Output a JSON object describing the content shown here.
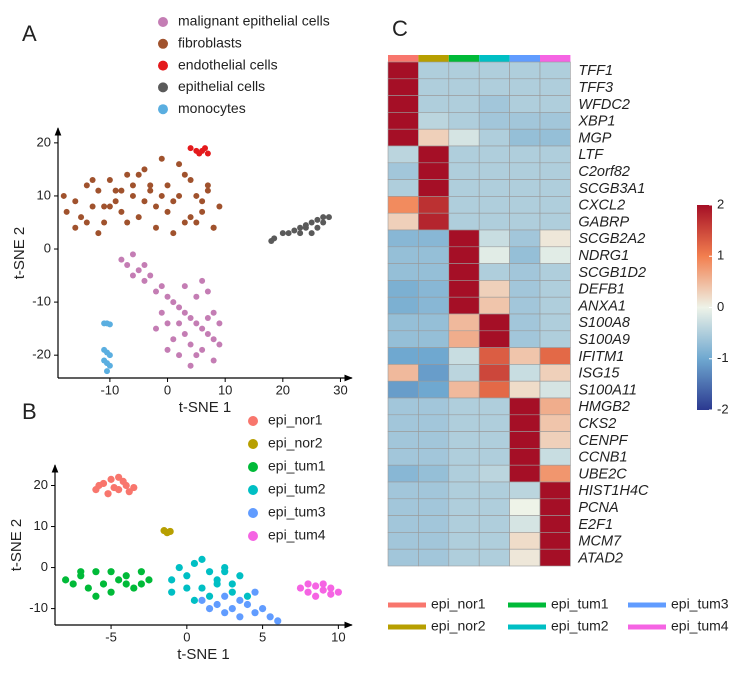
{
  "chart_data": [
    {
      "type": "scatter",
      "panel": "A",
      "xlabel": "t-SNE 1",
      "ylabel": "t-SNE 2",
      "xlim": [
        -19,
        32
      ],
      "ylim": [
        -24.3,
        22.8
      ],
      "xticks": [
        -10,
        0,
        10,
        20,
        30
      ],
      "yticks": [
        -20,
        -10,
        0,
        10,
        20
      ],
      "series": [
        {
          "name": "malignant epithelial cells",
          "color": "#c47db4",
          "x": [
            -8,
            -7,
            -6,
            -5,
            -4,
            -3,
            -2,
            -1,
            0,
            1,
            2,
            3,
            4,
            5,
            6,
            7,
            8,
            9,
            2,
            3,
            4,
            5,
            6,
            7,
            8,
            7,
            6,
            1,
            0,
            -1,
            -2,
            0,
            2,
            4,
            8,
            9,
            5,
            3,
            -6,
            -4
          ],
          "y": [
            -2,
            -3,
            -1,
            -4,
            -6,
            -5,
            -8,
            -7,
            -9,
            -10,
            -11,
            -12,
            -13,
            -14,
            -15,
            -16,
            -17,
            -18,
            -14,
            -16,
            -18,
            -20,
            -19,
            -13,
            -12,
            -8,
            -6,
            -17,
            -14,
            -12,
            -15,
            -19,
            -20,
            -22,
            -21,
            -14,
            -9,
            -7,
            -5,
            -3
          ]
        },
        {
          "name": "fibroblasts",
          "color": "#a0522d",
          "x": [
            -18,
            -17.5,
            -16,
            -15,
            -14,
            -13,
            -12,
            -11,
            -10,
            -9,
            -8,
            -7,
            -6,
            -5,
            -4,
            -3,
            -2,
            -1,
            0,
            1,
            2,
            3,
            4,
            5,
            6,
            7,
            8,
            9,
            -16,
            -14,
            -12,
            -10,
            -8,
            -6,
            -4,
            -2,
            0,
            2,
            4,
            6,
            8,
            -13,
            -9,
            -5,
            -1,
            3,
            7,
            -11,
            -7,
            -3,
            1,
            5
          ],
          "y": [
            10,
            7,
            9,
            6,
            12,
            8,
            11,
            5,
            13,
            9,
            7,
            14,
            10,
            6,
            15,
            11,
            8,
            17,
            12,
            9,
            16,
            5,
            13,
            10,
            7,
            11,
            4,
            8,
            4,
            5,
            3,
            8,
            11,
            12,
            9,
            4,
            7,
            10,
            6,
            9,
            4,
            13,
            11,
            14,
            10,
            14,
            12,
            8,
            5,
            12,
            3,
            5
          ]
        },
        {
          "name": "endothelial cells",
          "color": "#e41a1c",
          "x": [
            4,
            5,
            6,
            7,
            5.5,
            6.5
          ],
          "y": [
            19,
            18.5,
            18.5,
            18,
            18,
            19
          ]
        },
        {
          "name": "epithelial cells",
          "color": "#5a5a5a",
          "x": [
            18,
            18.5,
            20,
            21,
            22,
            23,
            24,
            25,
            26,
            27,
            28,
            25,
            26,
            27,
            24,
            23
          ],
          "y": [
            1.5,
            2,
            3,
            3,
            3.5,
            4,
            4.5,
            5,
            5.5,
            6,
            6,
            3,
            4,
            5,
            4,
            3
          ]
        },
        {
          "name": "monocytes",
          "color": "#5aaee0",
          "x": [
            -11,
            -10.5,
            -10,
            -11,
            -10.5,
            -10,
            -11,
            -10.5,
            -10,
            -10.5
          ],
          "y": [
            -14,
            -14,
            -14.2,
            -19,
            -19.5,
            -20,
            -21,
            -21.5,
            -22,
            -23
          ]
        }
      ]
    },
    {
      "type": "scatter",
      "panel": "B",
      "xlabel": "t-SNE 1",
      "ylabel": "t-SNE 2",
      "xlim": [
        -8.7,
        10.9
      ],
      "ylim": [
        -14,
        25
      ],
      "xticks": [
        -5,
        0,
        5,
        10
      ],
      "yticks": [
        -10,
        0,
        10,
        20
      ],
      "series": [
        {
          "name": "epi_nor1",
          "color": "#f8766d",
          "x": [
            -6,
            -5.5,
            -5,
            -4.5,
            -4,
            -3.5,
            -5.2,
            -4.8,
            -4.2,
            -5.8,
            -3.8,
            -4.5
          ],
          "y": [
            19,
            20.5,
            21.5,
            22,
            20,
            19.5,
            18,
            19.5,
            21,
            20,
            18.5,
            19
          ]
        },
        {
          "name": "epi_nor2",
          "color": "#b79f00",
          "x": [
            -1.5,
            -1.3,
            -1.1
          ],
          "y": [
            9,
            8.5,
            8.8
          ]
        },
        {
          "name": "epi_tum1",
          "color": "#00ba38",
          "x": [
            -8,
            -7.5,
            -7,
            -6.5,
            -6,
            -5.5,
            -5,
            -4.5,
            -4,
            -3.5,
            -3,
            -2.5,
            -6,
            -5,
            -4,
            -7,
            -3
          ],
          "y": [
            -3,
            -4,
            -2,
            -5,
            -1,
            -4,
            -6,
            -3,
            -2,
            -5,
            -1,
            -3,
            -7,
            -1,
            -4,
            -1,
            -4
          ]
        },
        {
          "name": "epi_tum2",
          "color": "#00bfc4",
          "x": [
            -1,
            -0.5,
            0,
            0.5,
            1,
            1.5,
            2,
            2.5,
            3,
            3.5,
            4,
            0,
            1,
            2,
            3,
            -1,
            0.5,
            1.5,
            2.5
          ],
          "y": [
            -3,
            0,
            -2,
            1,
            -5,
            -1,
            -4,
            0,
            -6,
            -2,
            -7,
            -5,
            2,
            -3,
            -4,
            -6,
            -8,
            -7,
            -1
          ]
        },
        {
          "name": "epi_tum3",
          "color": "#619cff",
          "x": [
            1,
            1.5,
            2,
            2.5,
            3,
            3.5,
            4,
            4.5,
            5,
            5.5,
            6,
            2.5,
            3.5,
            4.5
          ],
          "y": [
            -8,
            -10,
            -9,
            -11,
            -10,
            -12,
            -9,
            -11,
            -10,
            -12,
            -13,
            -7,
            -8,
            -6
          ]
        },
        {
          "name": "epi_tum4",
          "color": "#f564e3",
          "x": [
            7.5,
            8,
            8.5,
            9,
            9.5,
            10,
            8,
            9,
            8.5,
            9.5
          ],
          "y": [
            -5,
            -6,
            -4.5,
            -5.5,
            -5,
            -6,
            -4,
            -4,
            -7,
            -6.5
          ]
        }
      ]
    },
    {
      "type": "heatmap",
      "panel": "C",
      "columns": [
        {
          "name": "epi_nor1",
          "color": "#f8766d"
        },
        {
          "name": "epi_nor2",
          "color": "#b79f00"
        },
        {
          "name": "epi_tum1",
          "color": "#00ba38"
        },
        {
          "name": "epi_tum2",
          "color": "#00bfc4"
        },
        {
          "name": "epi_tum3",
          "color": "#619cff"
        },
        {
          "name": "epi_tum4",
          "color": "#f564e3"
        }
      ],
      "rows": [
        "TFF1",
        "TFF3",
        "WFDC2",
        "XBP1",
        "MGP",
        "LTF",
        "C2orf82",
        "SCGB3A1",
        "CXCL2",
        "GABRP",
        "SCGB2A2",
        "NDRG1",
        "SCGB1D2",
        "DEFB1",
        "ANXA1",
        "S100A8",
        "S100A9",
        "IFITM1",
        "ISG15",
        "S100A11",
        "HMGB2",
        "CKS2",
        "CENPF",
        "CCNB1",
        "UBE2C",
        "HIST1H4C",
        "PCNA",
        "E2F1",
        "MCM7",
        "ATAD2"
      ],
      "values": [
        [
          2,
          -0.5,
          -0.5,
          -0.5,
          -0.5,
          -0.5
        ],
        [
          2,
          -0.5,
          -0.5,
          -0.5,
          -0.5,
          -0.5
        ],
        [
          2,
          -0.5,
          -0.5,
          -0.6,
          -0.5,
          -0.5
        ],
        [
          2,
          -0.4,
          -0.5,
          -0.6,
          -0.6,
          -0.6
        ],
        [
          2,
          0.3,
          -0.2,
          -0.5,
          -0.7,
          -0.7
        ],
        [
          -0.4,
          2,
          -0.5,
          -0.5,
          -0.5,
          -0.5
        ],
        [
          -0.6,
          2,
          -0.5,
          -0.5,
          -0.5,
          -0.5
        ],
        [
          -0.5,
          2,
          -0.5,
          -0.5,
          -0.5,
          -0.5
        ],
        [
          0.9,
          1.7,
          -0.5,
          -0.5,
          -0.5,
          -0.5
        ],
        [
          0.3,
          1.8,
          -0.5,
          -0.5,
          -0.5,
          -0.5
        ],
        [
          -0.8,
          -0.8,
          2,
          -0.3,
          -0.6,
          0.1
        ],
        [
          -0.7,
          -0.7,
          2,
          -0.1,
          -0.7,
          -0.1
        ],
        [
          -0.7,
          -0.7,
          2,
          -0.5,
          -0.6,
          -0.5
        ],
        [
          -0.9,
          -0.8,
          2,
          0.3,
          -0.6,
          -0.5
        ],
        [
          -0.9,
          -0.8,
          2,
          0.4,
          -0.6,
          -0.5
        ],
        [
          -0.7,
          -0.7,
          0.5,
          2,
          -0.6,
          -0.5
        ],
        [
          -0.7,
          -0.7,
          0.6,
          2,
          -0.6,
          -0.5
        ],
        [
          -1,
          -1,
          -0.3,
          1.3,
          0.4,
          1.2
        ],
        [
          0.5,
          -1.1,
          -0.4,
          1.5,
          -0.3,
          0.3
        ],
        [
          -1.1,
          -1,
          0.5,
          1.2,
          0.2,
          -0.2
        ],
        [
          -0.6,
          -0.6,
          -0.5,
          -0.5,
          2,
          0.6
        ],
        [
          -0.6,
          -0.6,
          -0.5,
          -0.5,
          2,
          0.4
        ],
        [
          -0.6,
          -0.6,
          -0.5,
          -0.5,
          2,
          0.3
        ],
        [
          -0.6,
          -0.6,
          -0.5,
          -0.5,
          2,
          -0.3
        ],
        [
          -0.8,
          -0.7,
          -0.5,
          -0.4,
          2,
          0.8
        ],
        [
          -0.6,
          -0.6,
          -0.5,
          -0.5,
          -0.4,
          2
        ],
        [
          -0.6,
          -0.6,
          -0.5,
          -0.5,
          0,
          2
        ],
        [
          -0.6,
          -0.6,
          -0.5,
          -0.5,
          -0.2,
          2
        ],
        [
          -0.6,
          -0.6,
          -0.5,
          -0.5,
          0.2,
          2
        ],
        [
          -0.6,
          -0.6,
          -0.5,
          -0.5,
          0.1,
          2
        ]
      ],
      "zlim": [
        -2,
        2
      ],
      "zticks": [
        -2,
        -1,
        0,
        1,
        2
      ],
      "colors": [
        "#2b3990",
        "#6fa8d0",
        "#eef3e8",
        "#f27f4f",
        "#a50f26"
      ]
    }
  ]
}
